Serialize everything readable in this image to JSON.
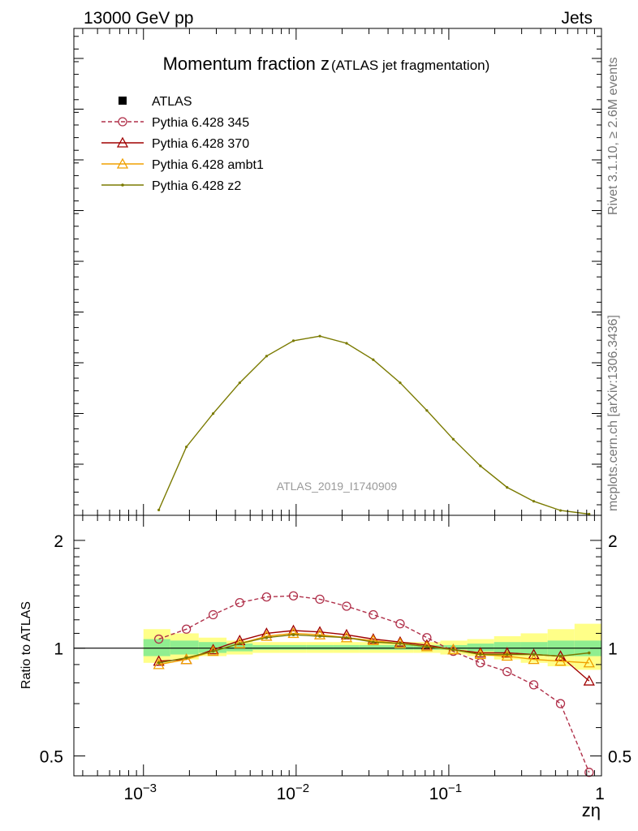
{
  "header": {
    "left": "13000 GeV pp",
    "right": "Jets"
  },
  "side_text": {
    "rivet": "Rivet 3.1.10, ≥ 2.6M events",
    "mcplots": "mcplots.cern.ch [arXiv:1306.3436]"
  },
  "chart_data": [
    {
      "type": "line",
      "title": "Momentum fraction z",
      "subtitle": "(ATLAS jet fragmentation)",
      "watermark": "ATLAS_2019_I1740909",
      "x_scale": "log",
      "xlim": [
        0.00035,
        1.0
      ],
      "y_tick_labels": [],
      "legend_placement": "top-left",
      "legend": [
        {
          "label": "ATLAS",
          "color": "#000000",
          "marker": "square",
          "style": "none"
        },
        {
          "label": "Pythia 6.428 345",
          "color": "#b0304a",
          "marker": "open-circle",
          "style": "dashed"
        },
        {
          "label": "Pythia 6.428 370",
          "color": "#a00000",
          "marker": "open-triangle",
          "style": "solid"
        },
        {
          "label": "Pythia 6.428 ambt1",
          "color": "#f0a000",
          "marker": "open-triangle",
          "style": "solid"
        },
        {
          "label": "Pythia 6.428 z2",
          "color": "#7a7a00",
          "marker": "dot",
          "style": "solid"
        }
      ],
      "series": [
        {
          "name": "Pythia 6.428 z2",
          "x": [
            0.00126,
            0.00191,
            0.00286,
            0.00427,
            0.0064,
            0.0096,
            0.0143,
            0.0214,
            0.032,
            0.048,
            0.0718,
            0.107,
            0.161,
            0.241,
            0.36,
            0.539,
            0.83
          ],
          "y": [
            0.12,
            1.35,
            2.0,
            2.6,
            3.12,
            3.42,
            3.51,
            3.37,
            3.05,
            2.6,
            2.06,
            1.5,
            0.98,
            0.56,
            0.29,
            0.11,
            0.04
          ]
        }
      ]
    },
    {
      "type": "line",
      "ylabel": "Ratio to ATLAS",
      "xlabel": "zη",
      "x_scale": "log",
      "y_scale": "log",
      "xlim": [
        0.00035,
        1.0
      ],
      "ylim": [
        0.44,
        2.35
      ],
      "x_tick_labels": [
        {
          "base": "10",
          "exp": "−3",
          "value": 0.001
        },
        {
          "base": "10",
          "exp": "−2",
          "value": 0.01
        },
        {
          "base": "10",
          "exp": "−1",
          "value": 0.1
        },
        {
          "base": "1",
          "exp": "",
          "value": 1.0
        }
      ],
      "y_tick_labels": [
        {
          "label": "0.5",
          "value": 0.5
        },
        {
          "label": "1",
          "value": 1.0
        },
        {
          "label": "2",
          "value": 2.0
        }
      ],
      "bands": {
        "bin_edges": [
          0.001,
          0.0015,
          0.0023,
          0.0035,
          0.0052,
          0.0078,
          0.0117,
          0.0175,
          0.026,
          0.039,
          0.059,
          0.088,
          0.132,
          0.198,
          0.296,
          0.444,
          0.666,
          1.0
        ],
        "outer": {
          "color": "#ffff88",
          "lo": [
            0.91,
            0.93,
            0.95,
            0.96,
            0.97,
            0.97,
            0.97,
            0.97,
            0.97,
            0.97,
            0.97,
            0.96,
            0.95,
            0.93,
            0.91,
            0.89,
            0.87
          ],
          "hi": [
            1.13,
            1.1,
            1.07,
            1.05,
            1.04,
            1.04,
            1.04,
            1.04,
            1.04,
            1.04,
            1.04,
            1.05,
            1.06,
            1.08,
            1.1,
            1.13,
            1.17
          ]
        },
        "inner": {
          "color": "#90ee90",
          "lo": [
            0.95,
            0.96,
            0.97,
            0.98,
            0.99,
            0.99,
            0.99,
            0.99,
            0.99,
            0.99,
            0.99,
            0.99,
            0.98,
            0.97,
            0.96,
            0.95,
            0.95
          ],
          "hi": [
            1.06,
            1.05,
            1.04,
            1.03,
            1.02,
            1.02,
            1.02,
            1.02,
            1.02,
            1.02,
            1.02,
            1.02,
            1.03,
            1.04,
            1.04,
            1.05,
            1.05
          ]
        }
      },
      "series": [
        {
          "name": "Pythia 6.428 345",
          "color": "#b0304a",
          "marker": "open-circle",
          "style": "dashed",
          "x": [
            0.00126,
            0.00191,
            0.00286,
            0.00427,
            0.0064,
            0.0096,
            0.0143,
            0.0214,
            0.032,
            0.048,
            0.0718,
            0.107,
            0.161,
            0.241,
            0.36,
            0.539,
            0.83
          ],
          "y": [
            1.06,
            1.13,
            1.24,
            1.34,
            1.39,
            1.4,
            1.37,
            1.31,
            1.24,
            1.17,
            1.07,
            0.98,
            0.91,
            0.86,
            0.79,
            0.7,
            0.45
          ]
        },
        {
          "name": "Pythia 6.428 370",
          "color": "#a00000",
          "marker": "open-triangle",
          "style": "solid",
          "x": [
            0.00126,
            0.00191,
            0.00286,
            0.00427,
            0.0064,
            0.0096,
            0.0143,
            0.0214,
            0.032,
            0.048,
            0.0718,
            0.107,
            0.161,
            0.241,
            0.36,
            0.539,
            0.83
          ],
          "y": [
            0.92,
            0.93,
            0.99,
            1.05,
            1.1,
            1.12,
            1.11,
            1.09,
            1.06,
            1.04,
            1.02,
            0.99,
            0.97,
            0.97,
            0.96,
            0.95,
            0.81
          ]
        },
        {
          "name": "Pythia 6.428 ambt1",
          "color": "#f0a000",
          "marker": "open-triangle",
          "style": "solid",
          "x": [
            0.00126,
            0.00191,
            0.00286,
            0.00427,
            0.0064,
            0.0096,
            0.0143,
            0.0214,
            0.032,
            0.048,
            0.0718,
            0.107,
            0.161,
            0.241,
            0.36,
            0.539,
            0.83
          ],
          "y": [
            0.9,
            0.93,
            0.98,
            1.03,
            1.08,
            1.1,
            1.09,
            1.07,
            1.05,
            1.03,
            1.01,
            0.99,
            0.96,
            0.95,
            0.93,
            0.92,
            0.91
          ]
        },
        {
          "name": "Pythia 6.428 z2",
          "color": "#7a7a00",
          "marker": "dot",
          "style": "solid",
          "x": [
            0.00126,
            0.00191,
            0.00286,
            0.00427,
            0.0064,
            0.0096,
            0.0143,
            0.0214,
            0.032,
            0.048,
            0.0718,
            0.107,
            0.161,
            0.241,
            0.36,
            0.539,
            0.83
          ],
          "y": [
            0.91,
            0.94,
            0.98,
            1.03,
            1.07,
            1.09,
            1.08,
            1.07,
            1.04,
            1.03,
            1.01,
            0.99,
            0.96,
            0.96,
            0.96,
            0.95,
            0.97
          ]
        }
      ]
    }
  ]
}
